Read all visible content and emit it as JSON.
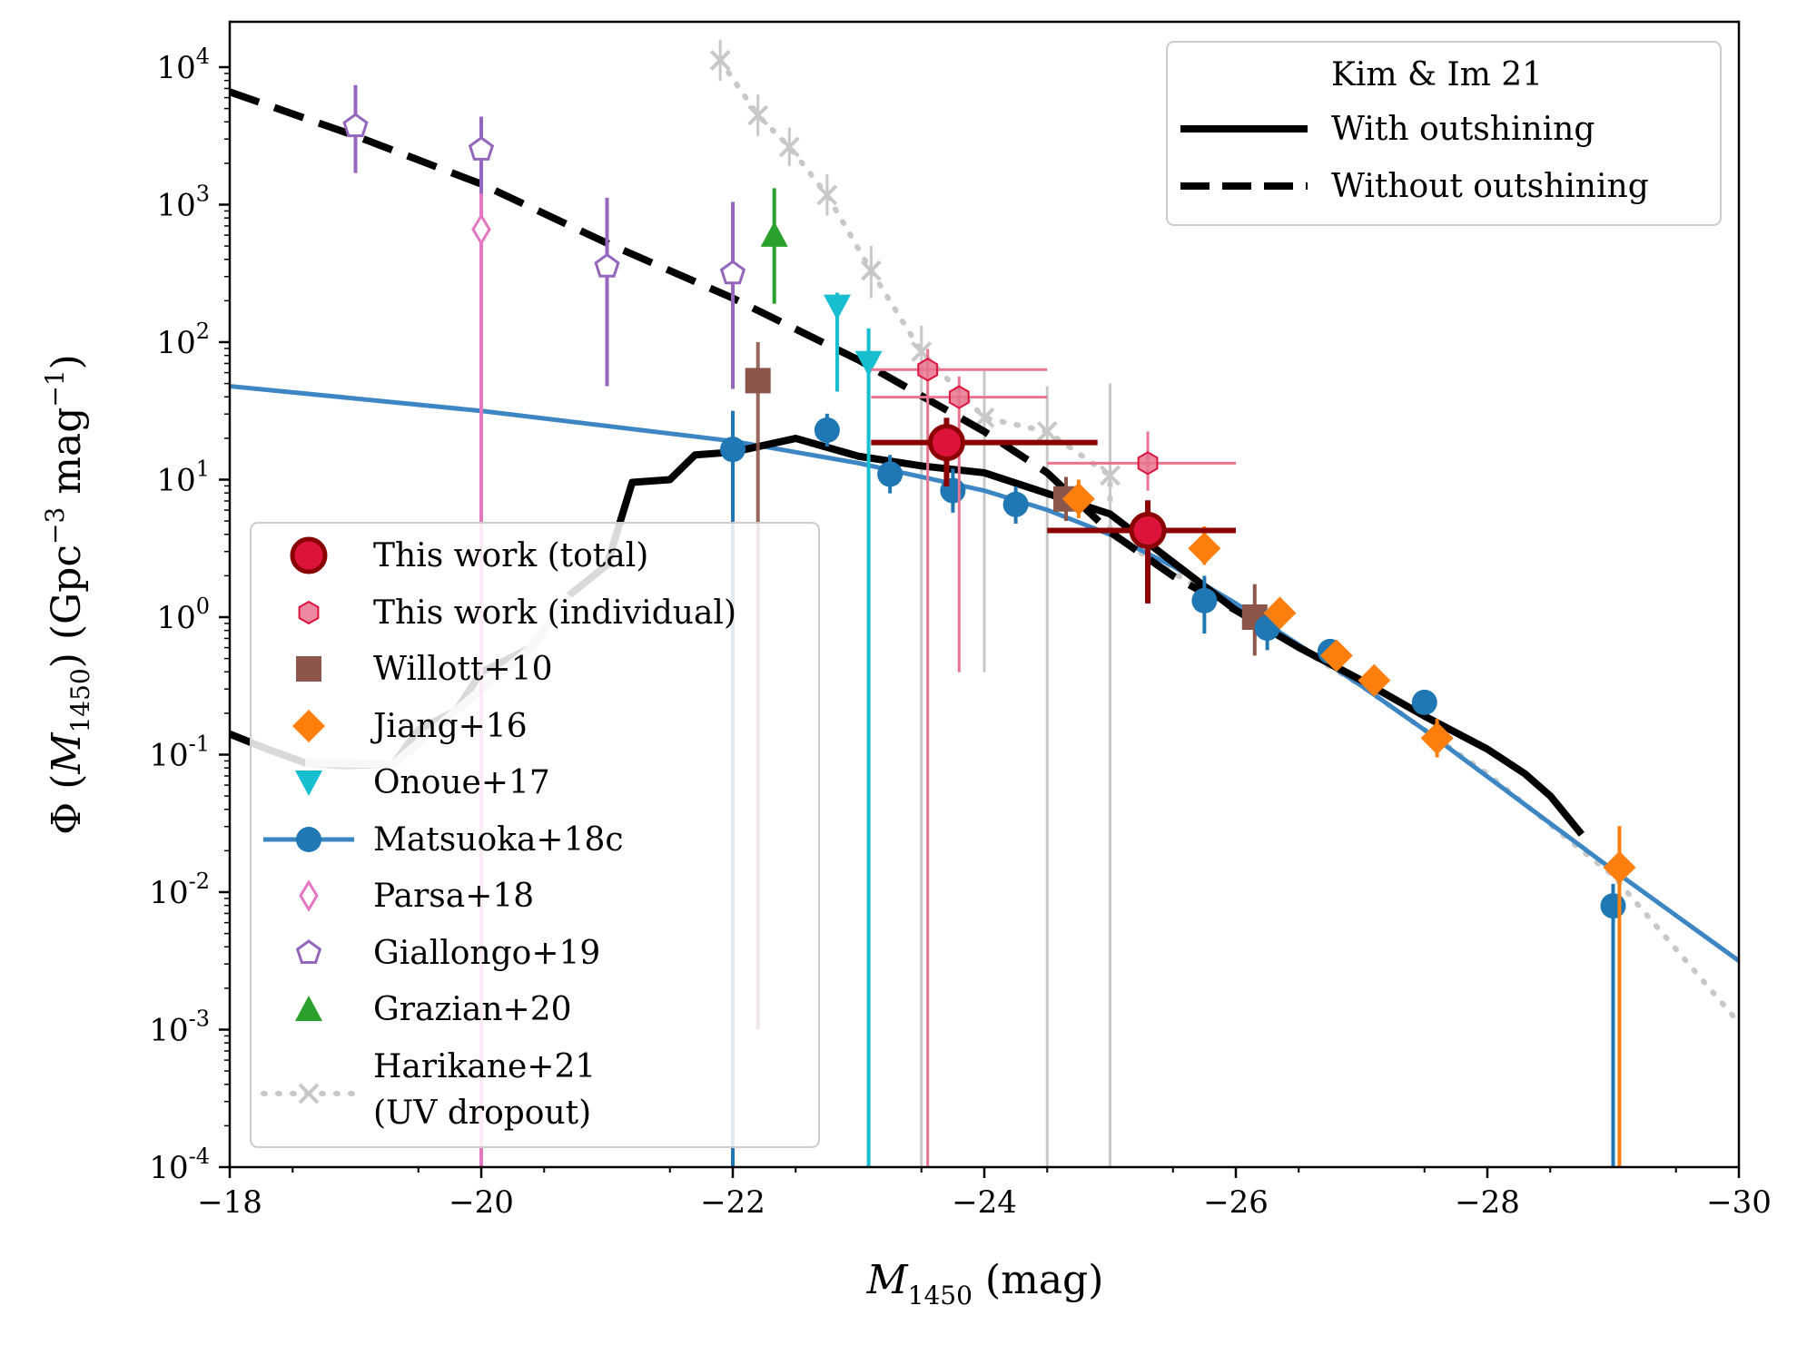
{
  "chart_data": {
    "type": "scatter",
    "xlabel": "M1450 (mag)",
    "xlabel_main": "M",
    "xlabel_sub": "1450",
    "xlabel_unit": " (mag)",
    "ylabel_prefix": "Φ (",
    "ylabel_M": "M",
    "ylabel_sub": "1450",
    "ylabel_mid": ") (Gpc",
    "ylabel_sup1": "−3",
    "ylabel_mag": " mag",
    "ylabel_sup2": "−1",
    "ylabel_end": ")",
    "xlim": [
      -18,
      -30
    ],
    "ylim_log10": [
      -4,
      4.33
    ],
    "y_scale": "log",
    "x_ticks": [
      -18,
      -20,
      -22,
      -24,
      -26,
      -28,
      -30
    ],
    "x_tick_labels": [
      "−18",
      "−20",
      "−22",
      "−24",
      "−26",
      "−28",
      "−30"
    ],
    "y_ticks_log10": [
      -4,
      -3,
      -2,
      -1,
      0,
      1,
      2,
      3,
      4
    ],
    "y_tick_base": "10",
    "y_tick_exps": [
      "-4",
      "-3",
      "-2",
      "-1",
      "0",
      "1",
      "2",
      "3",
      "4"
    ],
    "legend_top": {
      "position": "top-right",
      "title": "Kim & Im 21",
      "entries": [
        "With outshining",
        "Without outshining"
      ]
    },
    "legend_main": {
      "position": "lower-left",
      "entries": [
        {
          "key": "total",
          "label": "This work (total)"
        },
        {
          "key": "individual",
          "label": "This work (individual)"
        },
        {
          "key": "willott",
          "label": "Willott+10"
        },
        {
          "key": "jiang",
          "label": "Jiang+16"
        },
        {
          "key": "onoue",
          "label": "Onoue+17"
        },
        {
          "key": "matsuoka",
          "label": "Matsuoka+18c"
        },
        {
          "key": "parsa",
          "label": "Parsa+18"
        },
        {
          "key": "giallongo",
          "label": "Giallongo+19"
        },
        {
          "key": "grazian",
          "label": "Grazian+20"
        },
        {
          "key": "harikane",
          "label": "Harikane+21",
          "label2": "(UV dropout)"
        }
      ]
    },
    "colors": {
      "total": "#dc143c",
      "total_edge": "#8b0000",
      "individual": "#e9748f",
      "willott": "#8c564b",
      "jiang": "#ff7f0e",
      "onoue": "#17becf",
      "matsuoka": "#1f77b4",
      "matsuoka_line": "#3c86c3",
      "parsa": "#e377c2",
      "giallongo": "#9467bd",
      "grazian": "#2ca02c",
      "harikane": "#c8c8c8",
      "kim_im": "#000000"
    },
    "series": [
      {
        "key": "kim_with",
        "kind": "line",
        "x": [
          -18.0,
          -18.3,
          -18.6,
          -18.9,
          -19.3,
          -19.5,
          -19.8,
          -20.0,
          -20.4,
          -20.7,
          -21.0,
          -21.2,
          -21.5,
          -21.7,
          -22.0,
          -22.5,
          -23.0,
          -23.5,
          -24.0,
          -24.5,
          -25.0,
          -25.5,
          -26.0,
          -26.5,
          -27.0,
          -27.5,
          -28.0,
          -28.3,
          -28.5,
          -28.75
        ],
        "log10_y": [
          -0.85,
          -0.96,
          -1.06,
          -1.08,
          -1.07,
          -0.82,
          -0.68,
          -0.4,
          -0.22,
          0.16,
          0.38,
          0.98,
          1.0,
          1.18,
          1.2,
          1.3,
          1.17,
          1.1,
          1.05,
          0.9,
          0.75,
          0.4,
          0.05,
          -0.22,
          -0.46,
          -0.72,
          -0.96,
          -1.14,
          -1.3,
          -1.58
        ]
      },
      {
        "key": "kim_without",
        "kind": "line",
        "x": [
          -18.0,
          -19.0,
          -20.0,
          -21.0,
          -22.0,
          -23.0,
          -24.0,
          -24.5,
          -25.0,
          -25.5,
          -26.0
        ],
        "log10_y": [
          3.82,
          3.5,
          3.15,
          2.72,
          2.32,
          1.87,
          1.35,
          1.05,
          0.62,
          0.3,
          0.05
        ]
      },
      {
        "key": "matsuoka_fit",
        "kind": "line",
        "x": [
          -18.0,
          -20.0,
          -22.0,
          -23.0,
          -24.0,
          -24.5,
          -25.0,
          -25.5,
          -26.0,
          -26.5,
          -27.0,
          -27.5,
          -28.0,
          -28.5,
          -29.0,
          -29.5,
          -30.0
        ],
        "log10_y": [
          1.68,
          1.5,
          1.28,
          1.12,
          0.92,
          0.78,
          0.6,
          0.37,
          0.1,
          -0.2,
          -0.5,
          -0.82,
          -1.16,
          -1.5,
          -1.84,
          -2.17,
          -2.5
        ]
      },
      {
        "key": "harikane",
        "kind": "line_points",
        "x": [
          -21.9,
          -22.2,
          -22.45,
          -22.75,
          -23.1,
          -23.5,
          -24.0,
          -24.5,
          -25.0
        ],
        "log10_y": [
          4.05,
          3.65,
          3.42,
          3.07,
          2.52,
          1.93,
          1.45,
          1.35,
          1.03
        ],
        "err_log10": [
          [
            3.9,
            4.2
          ],
          [
            3.5,
            3.8
          ],
          [
            3.28,
            3.56
          ],
          [
            2.92,
            3.22
          ],
          [
            2.32,
            2.7
          ],
          [
            -4.0,
            2.12
          ],
          [
            -0.4,
            1.8
          ],
          [
            -4.0,
            1.68
          ],
          [
            -4.0,
            1.7
          ]
        ],
        "tail_x": [
          -25.0,
          -26.0,
          -27.0,
          -28.0,
          -29.0,
          -30.0
        ],
        "tail_log10_y": [
          0.6,
          0.05,
          -0.5,
          -1.14,
          -1.88,
          -2.95
        ]
      },
      {
        "key": "matsuoka",
        "kind": "points",
        "x": [
          -22.0,
          -22.75,
          -23.25,
          -23.75,
          -24.25,
          -25.75,
          -26.25,
          -26.75,
          -27.5,
          -29.0
        ],
        "log10_y": [
          1.22,
          1.36,
          1.04,
          0.92,
          0.82,
          0.12,
          -0.08,
          -0.25,
          -0.62,
          -2.1
        ],
        "err_log10": [
          [
            -4.0,
            1.5
          ],
          [
            1.24,
            1.48
          ],
          [
            0.9,
            1.18
          ],
          [
            0.76,
            1.08
          ],
          [
            0.68,
            0.95
          ],
          [
            -0.12,
            0.3
          ],
          [
            -0.24,
            0.06
          ],
          [
            -0.32,
            -0.16
          ],
          [
            -0.68,
            -0.56
          ],
          [
            -4.0,
            -1.94
          ]
        ]
      },
      {
        "key": "jiang",
        "kind": "points",
        "x": [
          -24.75,
          -25.75,
          -26.35,
          -26.8,
          -27.1,
          -27.6,
          -29.05
        ],
        "log10_y": [
          0.86,
          0.5,
          0.03,
          -0.28,
          -0.46,
          -0.88,
          -1.82
        ],
        "err_log10": [
          [
            0.72,
            1.0
          ],
          [
            0.38,
            0.66
          ],
          [
            -0.08,
            0.14
          ],
          [
            -0.36,
            -0.2
          ],
          [
            -0.56,
            -0.36
          ],
          [
            -1.02,
            -0.74
          ],
          [
            -4.0,
            -1.52
          ]
        ]
      },
      {
        "key": "willott",
        "kind": "points",
        "x": [
          -22.2,
          -24.65,
          -26.15
        ],
        "log10_y": [
          1.72,
          0.86,
          0.0
        ],
        "err_log10": [
          [
            -3.0,
            2.0
          ],
          [
            0.7,
            1.02
          ],
          [
            -0.28,
            0.24
          ]
        ]
      },
      {
        "key": "onoue",
        "kind": "upper_limits",
        "x": [
          -22.83,
          -23.08
        ],
        "log10_y": [
          2.26,
          1.85
        ],
        "err_log10": [
          [
            1.64,
            2.36
          ],
          [
            -4.0,
            2.1
          ]
        ]
      },
      {
        "key": "grazian",
        "kind": "lower_limits",
        "x": [
          -22.33
        ],
        "log10_y": [
          2.78
        ],
        "err_log10": [
          [
            2.28,
            3.12
          ]
        ]
      },
      {
        "key": "parsa",
        "kind": "points",
        "x": [
          -20.0
        ],
        "log10_y": [
          2.82
        ],
        "err_log10": [
          [
            -4.0,
            3.08
          ]
        ]
      },
      {
        "key": "giallongo",
        "kind": "points",
        "x": [
          -19.0,
          -20.0,
          -21.0,
          -22.0
        ],
        "log10_y": [
          3.57,
          3.4,
          2.55,
          2.5
        ],
        "err_log10": [
          [
            3.23,
            3.87
          ],
          [
            3.08,
            3.64
          ],
          [
            1.68,
            3.05
          ],
          [
            1.66,
            3.02
          ]
        ]
      },
      {
        "key": "individual",
        "kind": "points",
        "x": [
          -23.55,
          -23.8,
          -25.3
        ],
        "log10_y": [
          1.8,
          1.6,
          1.12
        ],
        "err_log10": [
          [
            -4.0,
            1.95
          ],
          [
            -0.4,
            1.75
          ],
          [
            0.92,
            1.35
          ]
        ],
        "xerr": [
          [
            -23.1,
            -24.5
          ],
          [
            -23.1,
            -24.5
          ],
          [
            -24.5,
            -26.0
          ]
        ]
      },
      {
        "key": "total",
        "kind": "points",
        "x": [
          -23.7,
          -25.3
        ],
        "log10_y": [
          1.27,
          0.63
        ],
        "err_log10": [
          [
            0.95,
            1.45
          ],
          [
            0.1,
            0.85
          ]
        ],
        "xerr": [
          [
            -23.1,
            -24.9
          ],
          [
            -24.5,
            -26.0
          ]
        ]
      }
    ]
  }
}
